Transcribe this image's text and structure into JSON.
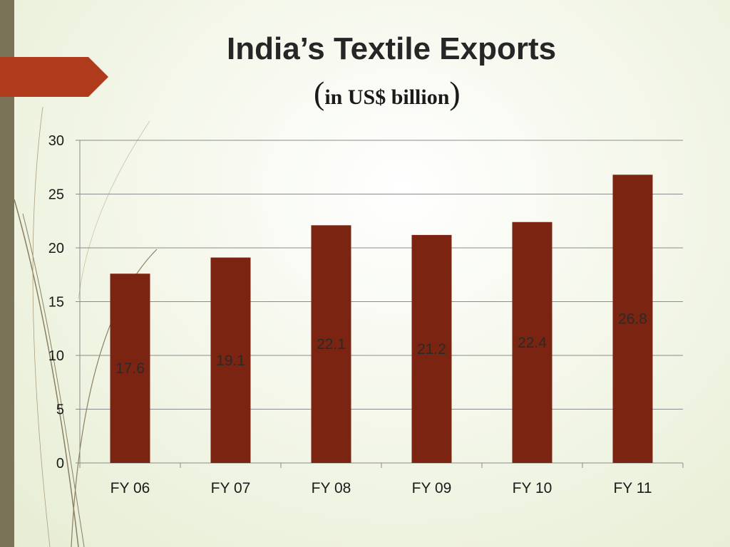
{
  "title": "India’s Textile Exports",
  "subtitle": {
    "open": "(",
    "text": "in US$ billion",
    "close": ")"
  },
  "colors": {
    "bar": "#7b2411",
    "grid": "#8c8c8c",
    "axis_text": "#1a1a1a",
    "flag": "#b03a1c",
    "band": "#7a7358"
  },
  "chart_data": {
    "type": "bar",
    "categories": [
      "FY 06",
      "FY 07",
      "FY 08",
      "FY 09",
      "FY 10",
      "FY 11"
    ],
    "values": [
      17.6,
      19.1,
      22.1,
      21.2,
      22.4,
      26.8
    ],
    "data_labels": [
      "17.6",
      "19.1",
      "22.1",
      "21.2",
      "22.4",
      "26.8"
    ],
    "ylim": [
      0,
      30
    ],
    "yticks": [
      0,
      5,
      10,
      15,
      20,
      25,
      30
    ],
    "grid": true,
    "legend": "none",
    "xlabel": "",
    "ylabel": ""
  }
}
